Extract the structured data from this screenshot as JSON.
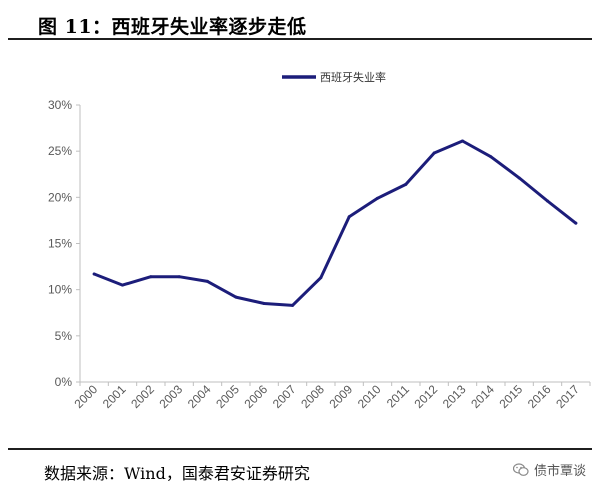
{
  "title": "图  11：西班牙失业率逐步走低",
  "source": "数据来源：Wind，国泰君安证券研究",
  "watermark": {
    "text": "债市覃谈",
    "icon": "wechat-icon"
  },
  "colors": {
    "series": "#1c1d7a",
    "axis": "#bfbfbf",
    "tick_text": "#595959"
  },
  "chart_data": {
    "type": "line",
    "title": "",
    "xlabel": "",
    "ylabel": "",
    "x": [
      "2000",
      "2001",
      "2002",
      "2003",
      "2004",
      "2005",
      "2006",
      "2007",
      "2008",
      "2009",
      "2010",
      "2011",
      "2012",
      "2013",
      "2014",
      "2015",
      "2016",
      "2017"
    ],
    "ylim": [
      0,
      30
    ],
    "y_ticks": [
      0,
      5,
      10,
      15,
      20,
      25,
      30
    ],
    "y_tick_labels": [
      "0%",
      "5%",
      "10%",
      "15%",
      "20%",
      "25%",
      "30%"
    ],
    "grid": false,
    "legend_position": "top",
    "series": [
      {
        "name": "西班牙失业率",
        "values": [
          11.7,
          10.5,
          11.4,
          11.4,
          10.9,
          9.2,
          8.5,
          8.3,
          11.3,
          17.9,
          19.9,
          21.4,
          24.8,
          26.1,
          24.4,
          22.1,
          19.6,
          17.2
        ]
      }
    ]
  }
}
